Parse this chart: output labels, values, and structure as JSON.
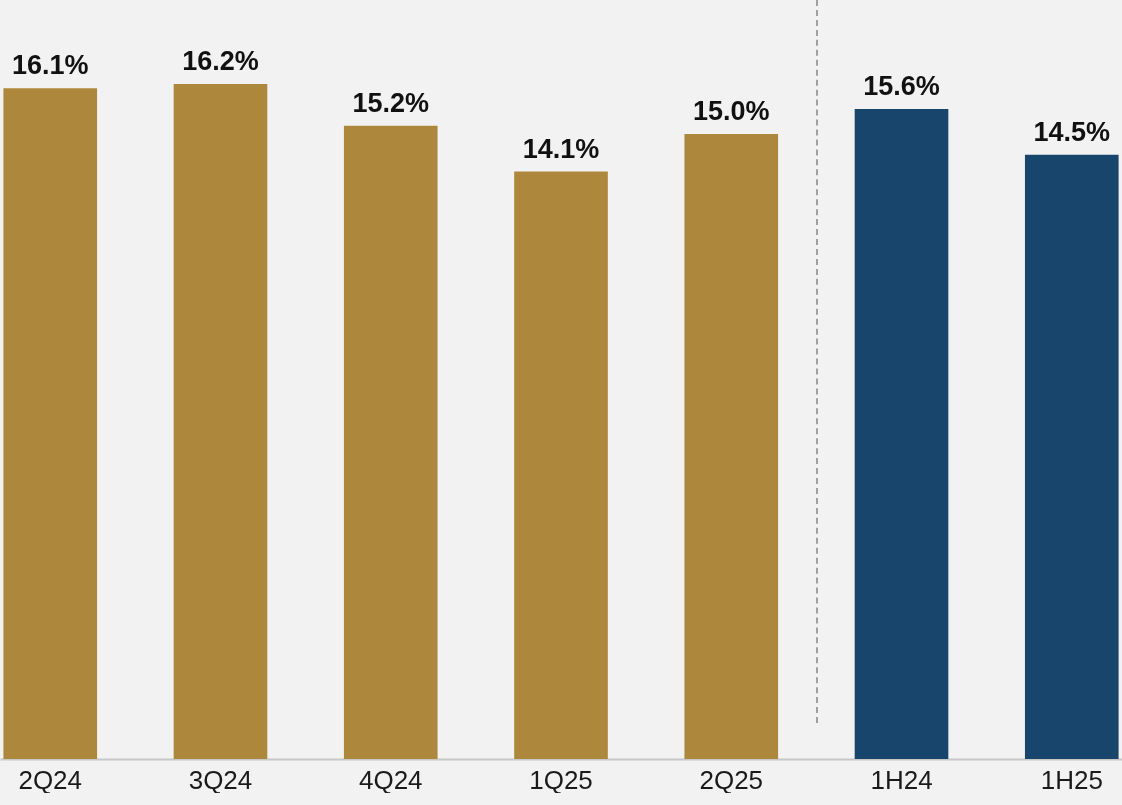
{
  "chart_data": {
    "type": "bar",
    "categories": [
      "2Q24",
      "3Q24",
      "4Q24",
      "1Q25",
      "2Q25",
      "1H24",
      "1H25"
    ],
    "values": [
      16.1,
      16.2,
      15.2,
      14.1,
      15.0,
      15.6,
      14.5
    ],
    "colors": [
      "#ad883c",
      "#ad883c",
      "#ad883c",
      "#ad883c",
      "#ad883c",
      "#17456b",
      "#17456b"
    ],
    "value_labels": [
      "16.1%",
      "16.2%",
      "15.2%",
      "14.1%",
      "15.0%",
      "15.6%",
      "14.5%"
    ]
  }
}
